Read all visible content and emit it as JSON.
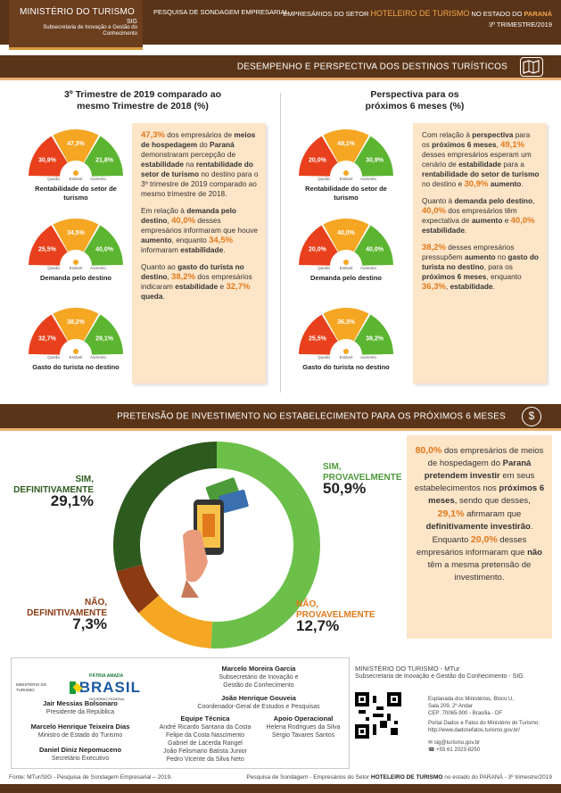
{
  "header": {
    "ministry": "MINISTÉRIO DO TURISMO",
    "sig": "SIG",
    "sub": "Subsecretaria de Inovação e Gestão do Conhecimento",
    "survey": "PESQUISA DE SONDAGEM EMPRESARIAL",
    "right_pre": "EMPRESÁRIOS DO SETOR",
    "right_hi": "HOTELEIRO DE TURISMO",
    "right_mid": "NO ESTADO DO",
    "right_state": "PARANÁ",
    "quarter": "3º TRIMESTRE/2019"
  },
  "section1": {
    "title": "DESEMPENHO E PERSPECTIVA DOS DESTINOS TURÍSTICOS",
    "left_title_1": "3º Trimestre de 2019 comparado ao",
    "left_title_2": "mesmo Trimestre de 2018 (%)",
    "right_title_1": "Perspectiva para os",
    "right_title_2": "próximos 6 meses (%)"
  },
  "legend": {
    "queda": "Queda",
    "estavel": "Estável",
    "aumento": "Aumento"
  },
  "colors": {
    "queda": "#e8401c",
    "estavel": "#f5a623",
    "aumento": "#5cb531"
  },
  "gauges": {
    "left": [
      {
        "caption": "Rentabilidade do setor de turismo",
        "queda": "30,9%",
        "estavel": "47,3%",
        "aumento": "21,8%"
      },
      {
        "caption": "Demanda pelo destino",
        "queda": "25,5%",
        "estavel": "34,5%",
        "aumento": "40,0%"
      },
      {
        "caption": "Gasto do turista no destino",
        "queda": "32,7%",
        "estavel": "38,2%",
        "aumento": "29,1%"
      }
    ],
    "right": [
      {
        "caption": "Rentabilidade do setor de turismo",
        "queda": "20,0%",
        "estavel": "49,1%",
        "aumento": "30,9%"
      },
      {
        "caption": "Demanda pelo destino",
        "queda": "20,0%",
        "estavel": "40,0%",
        "aumento": "40,0%"
      },
      {
        "caption": "Gasto do turista no destino",
        "queda": "25,5%",
        "estavel": "36,3%",
        "aumento": "38,2%"
      }
    ]
  },
  "left_text": {
    "p1": [
      {
        "t": "47,3%",
        "s": "o"
      },
      {
        "t": " dos empresários de ",
        "s": ""
      },
      {
        "t": "meios de hospedagem",
        "s": "b"
      },
      {
        "t": " do ",
        "s": ""
      },
      {
        "t": "Paraná",
        "s": "b"
      },
      {
        "t": " demonstraram percepção de ",
        "s": ""
      },
      {
        "t": "estabilidade",
        "s": "b"
      },
      {
        "t": " na ",
        "s": ""
      },
      {
        "t": "rentabilidade do setor de turismo",
        "s": "b"
      },
      {
        "t": " no destino para o 3º trimestre de 2019 comparado ao mesmo trimestre de 2018.",
        "s": ""
      }
    ],
    "p2": [
      {
        "t": "Em relação à ",
        "s": ""
      },
      {
        "t": "demanda pelo destino",
        "s": "b"
      },
      {
        "t": ", ",
        "s": ""
      },
      {
        "t": "40,0%",
        "s": "o"
      },
      {
        "t": " desses empresários informaram que houve ",
        "s": ""
      },
      {
        "t": "aumento",
        "s": "b"
      },
      {
        "t": ", enquanto ",
        "s": ""
      },
      {
        "t": "34,5%",
        "s": "o"
      },
      {
        "t": " informaram ",
        "s": ""
      },
      {
        "t": "estabilidade",
        "s": "b"
      },
      {
        "t": ".",
        "s": ""
      }
    ],
    "p3": [
      {
        "t": "Quanto ao ",
        "s": ""
      },
      {
        "t": "gasto do turista no destino",
        "s": "b"
      },
      {
        "t": ", ",
        "s": ""
      },
      {
        "t": "38,2%",
        "s": "o"
      },
      {
        "t": " dos empresários indicaram ",
        "s": ""
      },
      {
        "t": "estabilidade",
        "s": "b"
      },
      {
        "t": " e ",
        "s": ""
      },
      {
        "t": "32,7%",
        "s": "o"
      },
      {
        "t": " ",
        "s": ""
      },
      {
        "t": "queda",
        "s": "b"
      },
      {
        "t": ".",
        "s": ""
      }
    ]
  },
  "right_text": {
    "p1": [
      {
        "t": "Com relação à ",
        "s": ""
      },
      {
        "t": "perspectiva",
        "s": "b"
      },
      {
        "t": " para os ",
        "s": ""
      },
      {
        "t": "próximos 6 meses",
        "s": "b"
      },
      {
        "t": ", ",
        "s": ""
      },
      {
        "t": "49,1%",
        "s": "o"
      },
      {
        "t": " desses empresários esperam um cenário de ",
        "s": ""
      },
      {
        "t": "estabilidade",
        "s": "b"
      },
      {
        "t": " para a ",
        "s": ""
      },
      {
        "t": "rentabilidade do setor de turismo",
        "s": "b"
      },
      {
        "t": " no destino e ",
        "s": ""
      },
      {
        "t": "30,9%",
        "s": "o"
      },
      {
        "t": " ",
        "s": ""
      },
      {
        "t": "aumento",
        "s": "b"
      },
      {
        "t": ".",
        "s": ""
      }
    ],
    "p2": [
      {
        "t": "Quanto à ",
        "s": ""
      },
      {
        "t": "demanda pelo destino",
        "s": "b"
      },
      {
        "t": ", ",
        "s": ""
      },
      {
        "t": "40,0%",
        "s": "o"
      },
      {
        "t": " dos empresários têm expectativa de ",
        "s": ""
      },
      {
        "t": "aumento",
        "s": "b"
      },
      {
        "t": " e ",
        "s": ""
      },
      {
        "t": "40,0%",
        "s": "o"
      },
      {
        "t": " ",
        "s": ""
      },
      {
        "t": "estabilidade",
        "s": "b"
      },
      {
        "t": ".",
        "s": ""
      }
    ],
    "p3": [
      {
        "t": "38,2%",
        "s": "o"
      },
      {
        "t": " desses empresários pressupõem ",
        "s": ""
      },
      {
        "t": "aumento",
        "s": "b"
      },
      {
        "t": " no ",
        "s": ""
      },
      {
        "t": "gasto do turista no destino",
        "s": "b"
      },
      {
        "t": ", para os ",
        "s": ""
      },
      {
        "t": "próximos 6 meses",
        "s": "b"
      },
      {
        "t": ", enquanto ",
        "s": ""
      },
      {
        "t": "36,3%",
        "s": "o"
      },
      {
        "t": ", ",
        "s": ""
      },
      {
        "t": "estabilidade",
        "s": "b"
      },
      {
        "t": ".",
        "s": ""
      }
    ]
  },
  "section2": {
    "title": "PRETENSÃO DE INVESTIMENTO NO ESTABELECIMENTO PARA OS PRÓXIMOS 6 MESES"
  },
  "invest": [
    {
      "label1": "SIM,",
      "label2": "DEFINITIVAMENTE",
      "value": "29,1%",
      "pct": 29.1,
      "color": "#2d5a1e"
    },
    {
      "label1": "SIM,",
      "label2": "PROVAVELMENTE",
      "value": "50,9%",
      "pct": 50.9,
      "color": "#6cc04a"
    },
    {
      "label1": "NÃO,",
      "label2": "PROVAVELMENTE",
      "value": "12,7%",
      "pct": 12.7,
      "color": "#f5a623"
    },
    {
      "label1": "NÃO,",
      "label2": "DEFINITIVAMENTE",
      "value": "7,3%",
      "pct": 7.3,
      "color": "#8b3a12"
    }
  ],
  "invest_text": [
    {
      "t": "80,0%",
      "s": "o"
    },
    {
      "t": " dos empresários de meios de hospedagem do ",
      "s": ""
    },
    {
      "t": "Paraná pretendem investir",
      "s": "b"
    },
    {
      "t": " em seus estabelecimentos nos ",
      "s": ""
    },
    {
      "t": "próximos 6 meses",
      "s": "b"
    },
    {
      "t": ", sendo que desses, ",
      "s": ""
    },
    {
      "t": "29,1%",
      "s": "o"
    },
    {
      "t": " afirmaram que ",
      "s": ""
    },
    {
      "t": "definitivamente investirão",
      "s": "b"
    },
    {
      "t": ". Enquanto ",
      "s": ""
    },
    {
      "t": "20,0%",
      "s": "o"
    },
    {
      "t": " desses empresários informaram que ",
      "s": ""
    },
    {
      "t": "não",
      "s": "b"
    },
    {
      "t": " têm a mesma pretensão de investimento.",
      "s": ""
    }
  ],
  "footer": {
    "ministry_small": "MINISTÉRIO DO TURISMO",
    "brasil_top": "PÁTRIA AMADA",
    "brasil": "BRASIL",
    "brasil_sub": "GOVERNO FEDERAL",
    "p1_name": "Jair Messias Bolsonaro",
    "p1_role": "Presidente da República",
    "p2_name": "Marcelo Henrique Teixeira Dias",
    "p2_role": "Ministro de Estado do Turismo",
    "p3_name": "Daniel Diniz Nepomuceno",
    "p3_role": "Secretário Executivo",
    "p4_name": "Marcelo Moreira Garcia",
    "p4_role1": "Subsecretário de Inovação e",
    "p4_role2": "Gestão do Conhecimento",
    "p5_name": "João Henrique Gouveia",
    "p5_role": "Coordenador-Geral de Estudos e Pesquisas",
    "team_title": "Equipe Técnica",
    "team": [
      "André Ricardo Santana da Costa",
      "Felipe da Costa Nascimento",
      "Gabriel de Lacerda Rangel",
      "João Felismario Batista Junior",
      "Pedro Vicente da Silva Neto"
    ],
    "support_title": "Apoio Operacional",
    "support": [
      "Helena Rodrigues da Silva",
      "Sérgio Tavares Santos"
    ],
    "right_title": "MINISTÉRIO DO TURISMO - MTur",
    "right_sub": "Subsecretaria de Inovação e Gestão do Conhecimento - SIG",
    "addr": [
      "Esplanada dos Ministérios, Bloco U,",
      "Sala 209, 2º Andar",
      "CEP: 70065-900 - Brasília - DF"
    ],
    "portal1": "Portal Dados e Fatos do Ministério do Turismo:",
    "portal2": "http://www.dadosefatos.turismo.gov.br/",
    "email": "sig@turismo.gov.br",
    "phone": "+55 61 2023-8250"
  },
  "source_left": "Fonte: MTur/SIG - Pesquisa de Sondagem Empresarial – 2019.",
  "source_right_pre": "Pesquisa de Sondagem - Empresários do Setor",
  "source_right_b": "HOTELEIRO DE TURISMO",
  "source_right_post": "no estado do PARANÁ - 3º trimestre/2019"
}
